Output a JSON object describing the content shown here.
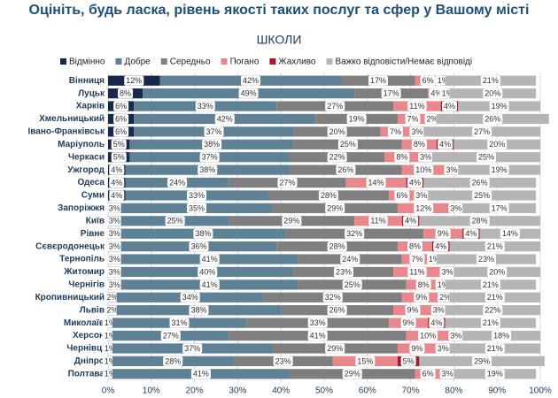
{
  "chart_data": {
    "type": "stacked-barh",
    "title": "Оцініть, будь ласка, рівень якості таких послуг та сфер у Вашому місті",
    "subtitle": "ШКОЛИ",
    "categories": [
      "Вінниця",
      "Луцьк",
      "Харків",
      "Хмельницький",
      "Івано-Франківськ",
      "Маріуполь",
      "Черкаси",
      "Ужгород",
      "Одеса",
      "Суми",
      "Запоріжжя",
      "Київ",
      "Рівне",
      "Сєвєродонецьк",
      "Тернопіль",
      "Житомир",
      "Чернігів",
      "Кропивницький",
      "Львів",
      "Миколаїв",
      "Херсон",
      "Чернівці",
      "Дніпро",
      "Полтава"
    ],
    "series": [
      {
        "name": "Відмінно",
        "color": "#16294a",
        "values": [
          12,
          8,
          6,
          6,
          6,
          5,
          5,
          4,
          4,
          4,
          3,
          3,
          3,
          3,
          3,
          3,
          3,
          2,
          2,
          1,
          1,
          1,
          1,
          1
        ],
        "value_labels": [
          "12%",
          "8%",
          "6%",
          "6%",
          "6%",
          "5%",
          "5%",
          "4%",
          "4%",
          "4%",
          "3%",
          "3%",
          "3%",
          "3%",
          "3%",
          "3%",
          "3%",
          "2%",
          "2%",
          "1%",
          "1%",
          "1%",
          "1%",
          "1%"
        ]
      },
      {
        "name": "Добре",
        "color": "#5f8196",
        "values": [
          42,
          49,
          33,
          42,
          37,
          38,
          37,
          38,
          24,
          33,
          35,
          25,
          38,
          36,
          41,
          40,
          41,
          34,
          38,
          31,
          27,
          37,
          28,
          41
        ],
        "value_labels": [
          "42%",
          "49%",
          "33%",
          "42%",
          "37%",
          "38%",
          "37%",
          "38%",
          "24%",
          "33%",
          "35%",
          "25%",
          "38%",
          "36%",
          "41%",
          "40%",
          "41%",
          "34%",
          "38%",
          "31%",
          "27%",
          "37%",
          "28%",
          "41%"
        ]
      },
      {
        "name": "Середньо",
        "color": "#7f7f7f",
        "values": [
          17,
          17,
          27,
          19,
          20,
          25,
          22,
          26,
          27,
          28,
          29,
          29,
          32,
          28,
          24,
          23,
          25,
          32,
          26,
          33,
          41,
          29,
          23,
          29
        ],
        "value_labels": [
          "17%",
          "17%",
          "27%",
          "19%",
          "20%",
          "25%",
          "22%",
          "26%",
          "27%",
          "28%",
          "29%",
          "29%",
          "32%",
          "28%",
          "24%",
          "23%",
          "25%",
          "32%",
          "26%",
          "33%",
          "41%",
          "29%",
          "23%",
          "29%"
        ]
      },
      {
        "name": "Погано",
        "color": "#e8878c",
        "values": [
          6,
          4,
          11,
          7,
          7,
          8,
          8,
          10,
          14,
          6,
          12,
          11,
          9,
          8,
          7,
          11,
          8,
          9,
          9,
          9,
          10,
          9,
          15,
          6
        ],
        "value_labels": [
          "6%",
          "4%",
          "11%",
          "7%",
          "7%",
          "8%",
          "8%",
          "10%",
          "14%",
          "6%",
          "12%",
          "11%",
          "9%",
          "8%",
          "7%",
          "11%",
          "8%",
          "9%",
          "9%",
          "9%",
          "10%",
          "9%",
          "15%",
          "6%"
        ]
      },
      {
        "name": "Жахливо",
        "color": "#a31b2f",
        "values": [
          1,
          1,
          4,
          2,
          3,
          4,
          3,
          3,
          4,
          3,
          3,
          4,
          4,
          4,
          1,
          3,
          1,
          2,
          3,
          4,
          3,
          3,
          5,
          3
        ],
        "value_labels": [
          "1%",
          "1%",
          "4%",
          "2%",
          "3%",
          "4%",
          "3%",
          "3%",
          "4%",
          "3%",
          "3%",
          "4%",
          "4%",
          "4%",
          "1%",
          "3%",
          "1%",
          "2%",
          "3%",
          "4%",
          "3%",
          "3%",
          "5%",
          "3%"
        ]
      },
      {
        "name": "Важко відповісти/Немає відповіді",
        "color": "#b5b5b5",
        "values": [
          21,
          20,
          19,
          26,
          27,
          20,
          25,
          19,
          26,
          25,
          17,
          28,
          14,
          21,
          23,
          20,
          21,
          21,
          22,
          21,
          18,
          21,
          29,
          19
        ],
        "value_labels": [
          "21%",
          "20%",
          "19%",
          "26%",
          "27%",
          "20%",
          "25%",
          "19%",
          "26%",
          "25%",
          "17%",
          "28%",
          "14%",
          "21%",
          "23%",
          "20%",
          "21%",
          "21%",
          "22%",
          "21%",
          "18%",
          "21%",
          "29%",
          "19%"
        ]
      }
    ],
    "xlim": [
      0,
      100
    ],
    "xticks": [
      {
        "value": 0,
        "label": "0%"
      },
      {
        "value": 10,
        "label": "10%"
      },
      {
        "value": 20,
        "label": "20%"
      },
      {
        "value": 30,
        "label": "30%"
      },
      {
        "value": 40,
        "label": "40%"
      },
      {
        "value": 50,
        "label": "50%"
      },
      {
        "value": 60,
        "label": "60%"
      },
      {
        "value": 70,
        "label": "70%"
      },
      {
        "value": 80,
        "label": "80%"
      },
      {
        "value": 90,
        "label": "90%"
      },
      {
        "value": 100,
        "label": "100%"
      }
    ],
    "grid": true
  }
}
